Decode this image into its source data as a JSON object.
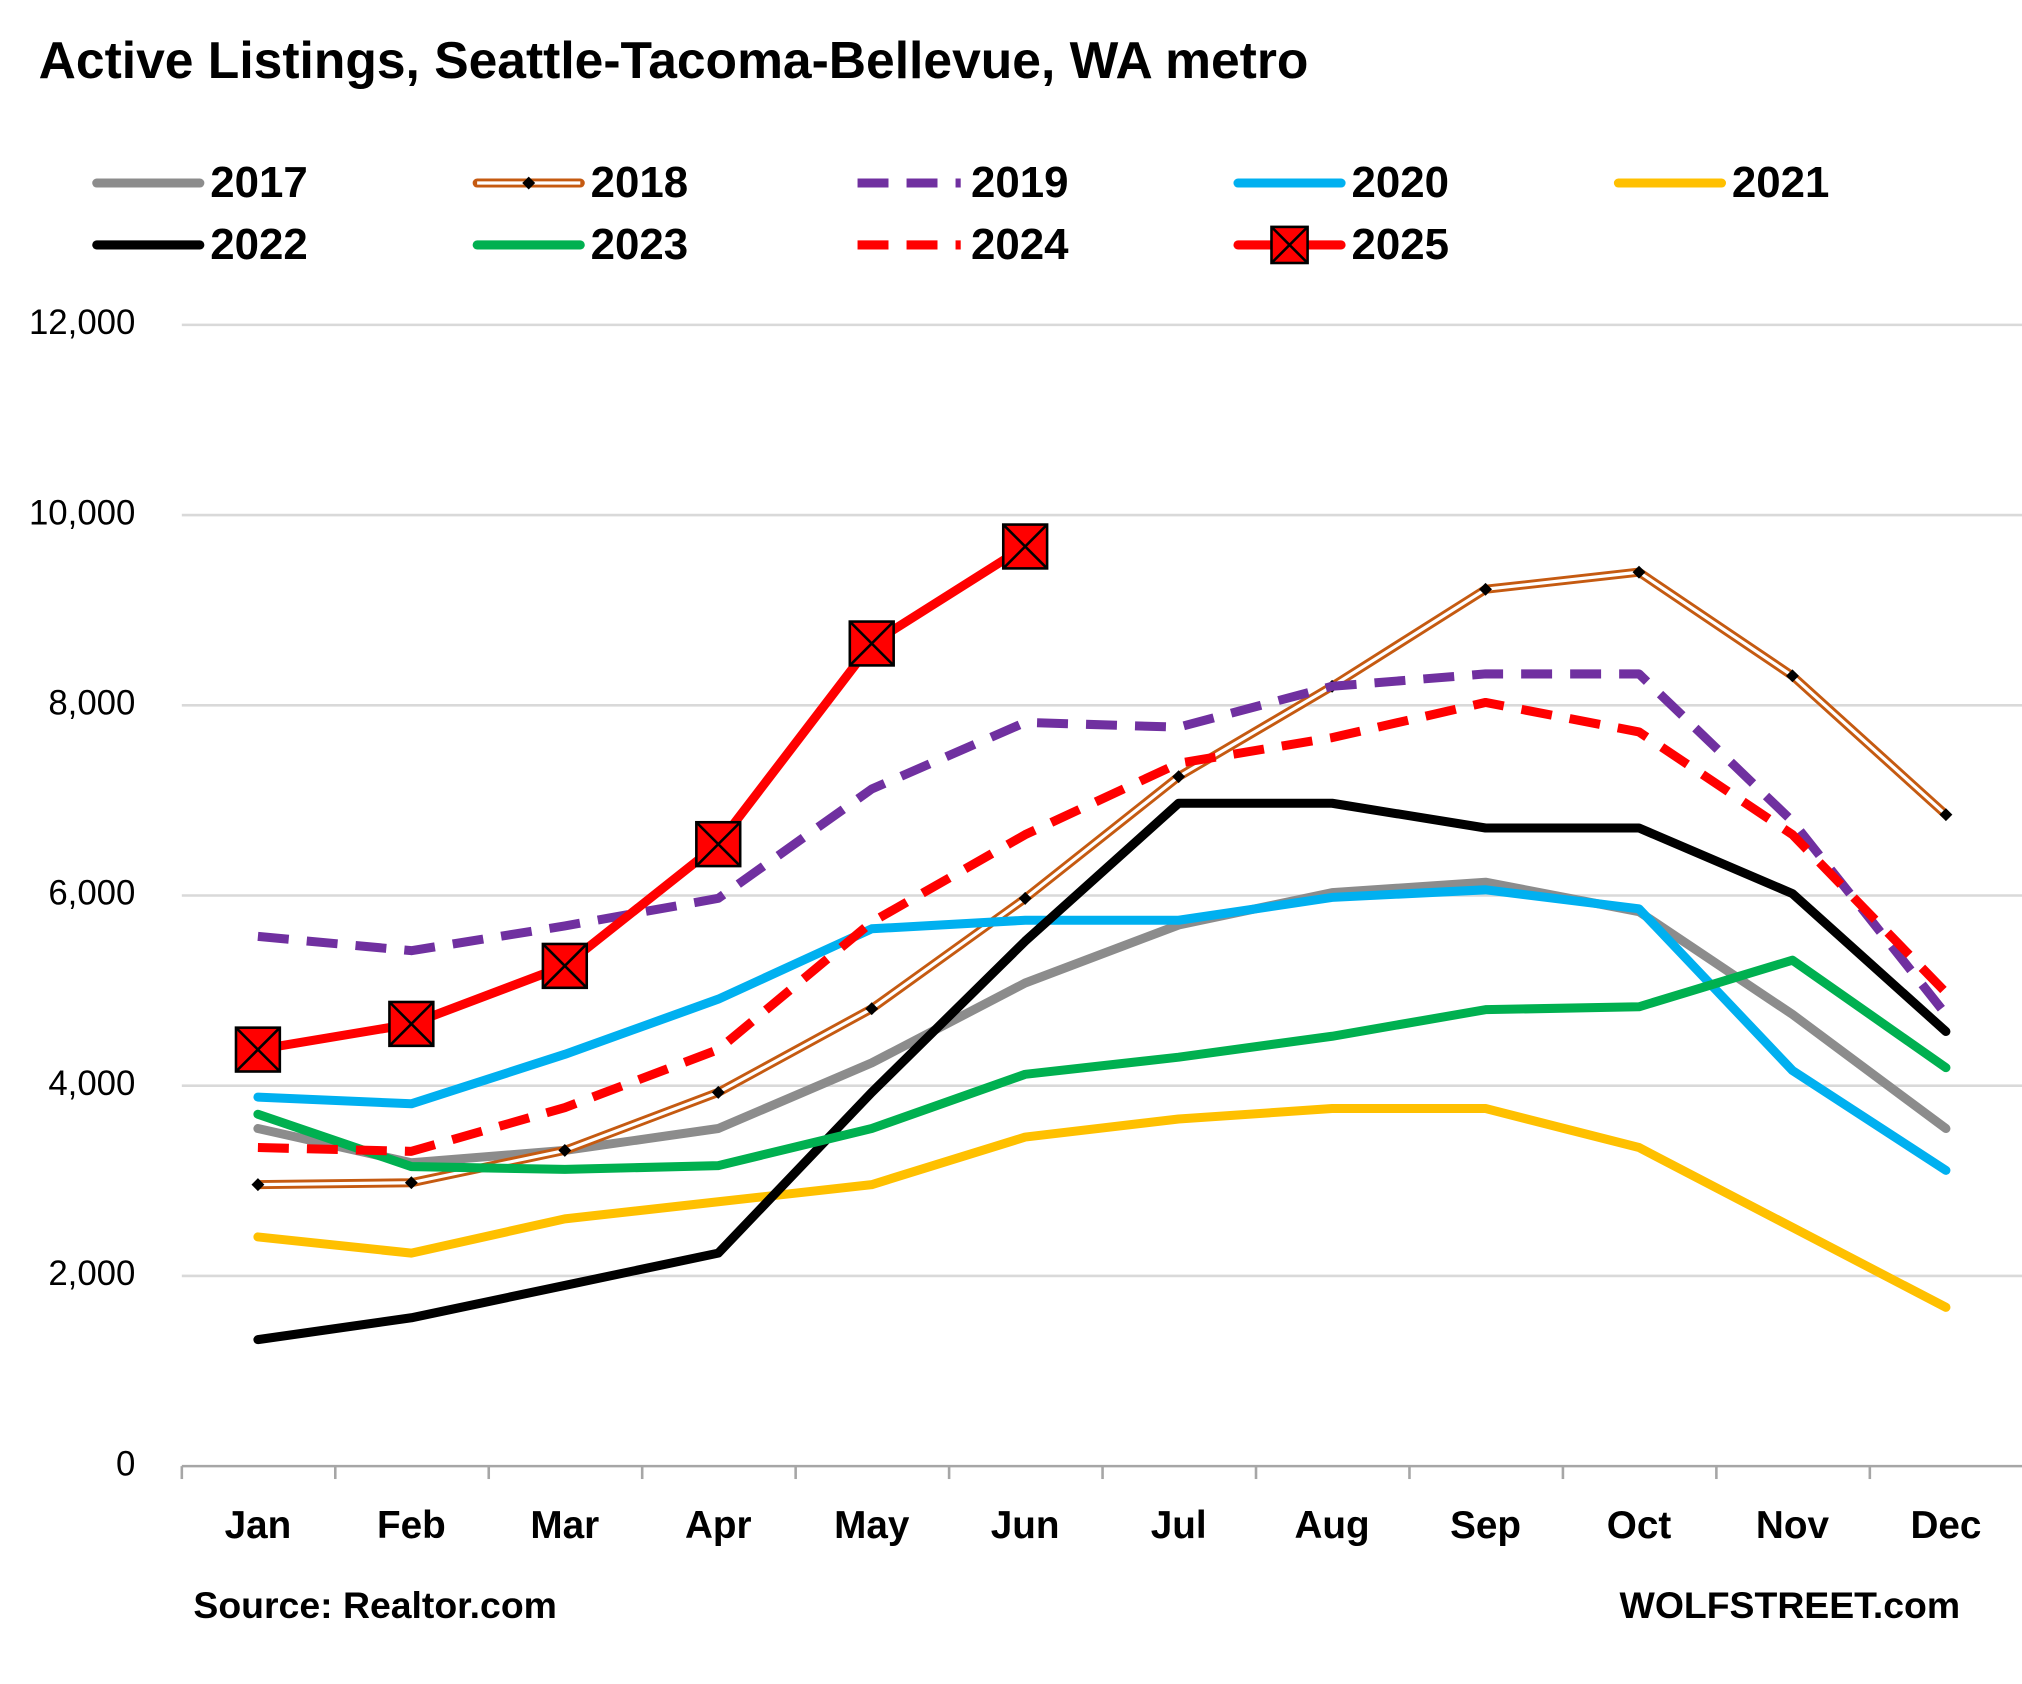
{
  "chart_data": {
    "type": "line",
    "title": "Active Listings, Seattle-Tacoma-Bellevue, WA metro",
    "annotations": [
      "Source: Realtor.com",
      "WOLFSTREET.com"
    ],
    "categories": [
      "Jan",
      "Feb",
      "Mar",
      "Apr",
      "May",
      "Jun",
      "Jul",
      "Aug",
      "Sep",
      "Oct",
      "Nov",
      "Dec"
    ],
    "ylim": [
      0,
      12000
    ],
    "yticks": [
      0,
      {
        "value": 2000,
        "label": "2,000"
      },
      {
        "value": 4000,
        "label": "4,000"
      },
      {
        "value": 6000,
        "label": "6,000"
      },
      {
        "value": 8000,
        "label": "8,000"
      },
      {
        "value": 10000,
        "label": "10,000"
      },
      {
        "value": 12000,
        "label": "12,000"
      }
    ],
    "grid": true,
    "legend": "top",
    "series": [
      {
        "name": "2017",
        "color": "#8c8c8c",
        "values": [
          3550,
          3190,
          3320,
          3550,
          4240,
          5080,
          5690,
          6030,
          6140,
          5830,
          4750,
          3550
        ]
      },
      {
        "name": "2018",
        "color": "#c55a11",
        "double": true,
        "marker": "diamond",
        "values": [
          2960,
          2980,
          3320,
          3930,
          4810,
          5970,
          7250,
          8200,
          9220,
          9400,
          8310,
          6850
        ]
      },
      {
        "name": "2019",
        "color": "#7030a0",
        "dash": true,
        "values": [
          5570,
          5420,
          5680,
          5970,
          7120,
          7820,
          7770,
          8200,
          8330,
          8330,
          6780,
          4750
        ]
      },
      {
        "name": "2020",
        "color": "#00b0f0",
        "values": [
          3880,
          3810,
          4330,
          4910,
          5650,
          5740,
          5740,
          5980,
          6060,
          5860,
          4160,
          3110
        ]
      },
      {
        "name": "2021",
        "color": "#ffc000",
        "values": [
          2410,
          2240,
          2600,
          2780,
          2960,
          3460,
          3650,
          3760,
          3760,
          3350,
          2510,
          1670
        ]
      },
      {
        "name": "2022",
        "color": "#000000",
        "values": [
          1330,
          1560,
          1900,
          2240,
          3930,
          5520,
          6970,
          6970,
          6710,
          6710,
          6020,
          4570
        ]
      },
      {
        "name": "2023",
        "color": "#00b050",
        "values": [
          3700,
          3150,
          3120,
          3160,
          3550,
          4120,
          4300,
          4520,
          4800,
          4830,
          5320,
          4190
        ]
      },
      {
        "name": "2024",
        "color": "#ff0000",
        "dash": true,
        "values": [
          3350,
          3310,
          3770,
          4380,
          5720,
          6640,
          7390,
          7660,
          8030,
          7720,
          6640,
          4980
        ]
      },
      {
        "name": "2025",
        "color": "#ff0000",
        "marker": "square-x",
        "values": [
          4380,
          4650,
          5260,
          6540,
          8650,
          9670,
          null,
          null,
          null,
          null,
          null,
          null
        ]
      }
    ]
  }
}
